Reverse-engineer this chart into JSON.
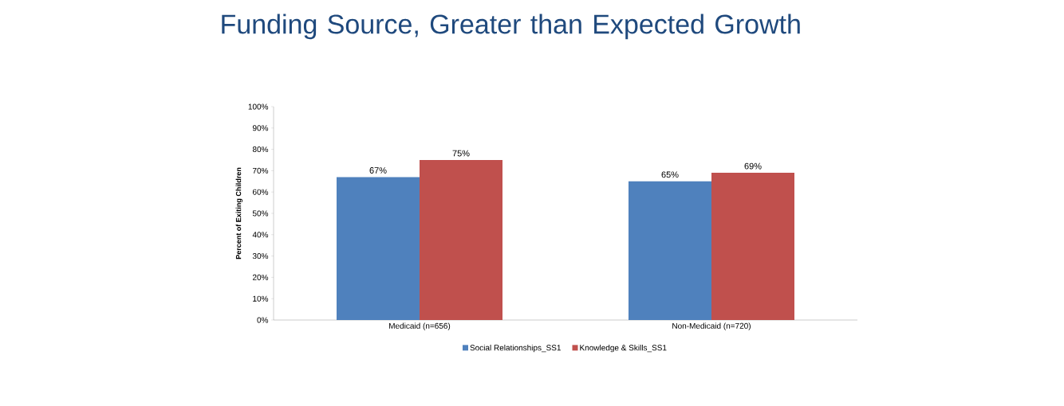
{
  "chart_data": {
    "type": "bar",
    "title": "Funding Source, Greater than Expected Growth",
    "ylabel": "Percent of Exiting Children",
    "categories": [
      "Medicaid (n=656)",
      "Non-Medicaid (n=720)"
    ],
    "series": [
      {
        "name": "Social Relationships_SS1",
        "color": "#4f81bd",
        "values": [
          67,
          65
        ],
        "value_labels": [
          "67%",
          "65%"
        ]
      },
      {
        "name": "Knowledge & Skills_SS1",
        "color": "#c0504d",
        "values": [
          75,
          69
        ],
        "value_labels": [
          "75%",
          "69%"
        ]
      }
    ],
    "ylim": [
      0,
      100
    ],
    "yticks": [
      {
        "value": 0,
        "label": "0%"
      },
      {
        "value": 10,
        "label": "10%"
      },
      {
        "value": 20,
        "label": "20%"
      },
      {
        "value": 30,
        "label": "30%"
      },
      {
        "value": 40,
        "label": "40%"
      },
      {
        "value": 50,
        "label": "50%"
      },
      {
        "value": 60,
        "label": "60%"
      },
      {
        "value": 70,
        "label": "70%"
      },
      {
        "value": 80,
        "label": "80%"
      },
      {
        "value": 90,
        "label": "90%"
      },
      {
        "value": 100,
        "label": "100%"
      }
    ],
    "grid": false,
    "legend": "bottom"
  }
}
